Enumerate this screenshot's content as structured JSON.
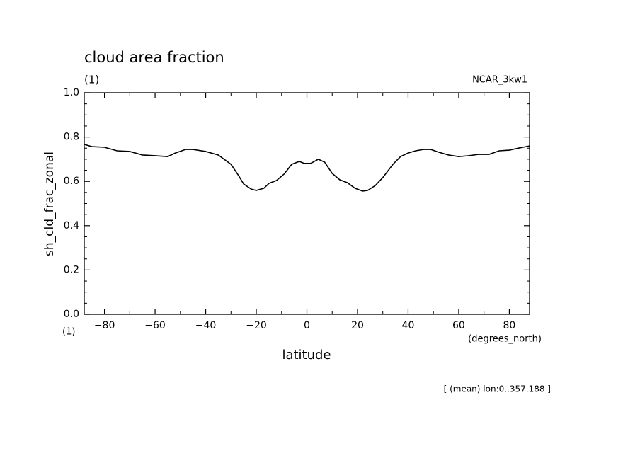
{
  "chart_data": {
    "type": "line",
    "title": "cloud area fraction",
    "units": "(1)",
    "run_label": "NCAR_3kw1",
    "ylabel": "sh_cld_frac_zonal",
    "xlabel": "latitude",
    "y_unit_corner": "(1)",
    "x_units": "(degrees_north)",
    "footnote": "[ (mean) lon:0..357.188 ]",
    "x": [
      -88,
      -85,
      -80,
      -75,
      -70,
      -65,
      -60,
      -55,
      -52,
      -48,
      -45,
      -40,
      -35,
      -30,
      -27,
      -25,
      -22,
      -20,
      -17,
      -15,
      -12,
      -9,
      -6,
      -3,
      -1,
      1.5,
      4.5,
      7,
      10,
      13,
      16,
      19,
      22,
      24,
      27,
      30,
      34,
      37,
      40,
      43,
      46,
      49,
      52,
      56,
      60,
      64,
      68,
      72,
      76,
      80,
      84,
      88
    ],
    "series": [
      {
        "color": "#000000",
        "values": [
          0.767,
          0.757,
          0.754,
          0.738,
          0.735,
          0.719,
          0.716,
          0.712,
          0.728,
          0.744,
          0.744,
          0.735,
          0.719,
          0.677,
          0.626,
          0.588,
          0.565,
          0.559,
          0.569,
          0.591,
          0.604,
          0.633,
          0.677,
          0.69,
          0.681,
          0.681,
          0.7,
          0.687,
          0.636,
          0.607,
          0.594,
          0.569,
          0.556,
          0.559,
          0.581,
          0.617,
          0.677,
          0.712,
          0.728,
          0.738,
          0.744,
          0.744,
          0.732,
          0.719,
          0.712,
          0.716,
          0.722,
          0.722,
          0.738,
          0.741,
          0.751,
          0.76
        ]
      }
    ],
    "xlim": [
      -88,
      88
    ],
    "ylim": [
      0,
      1
    ],
    "xticks": [
      {
        "value": -80,
        "label": "−80"
      },
      {
        "value": -60,
        "label": "−60"
      },
      {
        "value": -40,
        "label": "−40"
      },
      {
        "value": -20,
        "label": "−20"
      },
      0,
      20,
      40,
      60,
      80
    ],
    "yticks": [
      {
        "value": 0,
        "label": "0.0"
      },
      {
        "value": 0.2,
        "label": "0.2"
      },
      {
        "value": 0.4,
        "label": "0.4"
      },
      {
        "value": 0.6,
        "label": "0.6"
      },
      {
        "value": 0.8,
        "label": "0.8"
      },
      {
        "value": 1,
        "label": "1.0"
      }
    ]
  }
}
